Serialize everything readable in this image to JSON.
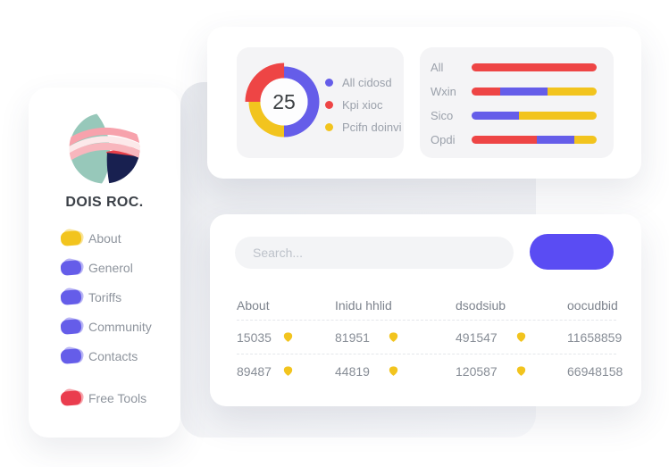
{
  "palette": {
    "red": "#ee4545",
    "blue": "#655de9",
    "yellow": "#f2c41e",
    "button": "#5a4cf3",
    "text_dark": "#3b4047",
    "text_gray": "#8e949d",
    "text_light": "#9ba1ab",
    "panel_gray": "#f4f4f6"
  },
  "sidebar": {
    "brand_name": "DOIS ROC.",
    "items": [
      {
        "label": "About",
        "color_hex": "#f2c41e"
      },
      {
        "label": "Generol",
        "color_hex": "#655de9"
      },
      {
        "label": "Toriffs",
        "color_hex": "#655de9"
      },
      {
        "label": "Community",
        "color_hex": "#655de9"
      },
      {
        "label": "Contacts",
        "color_hex": "#655de9"
      },
      {
        "label": "Free Tools",
        "color_hex": "#ea3d4e"
      }
    ]
  },
  "donut_card": {
    "center_value": "25",
    "legend": [
      {
        "label": "All cidosd",
        "color_hex": "#655de9"
      },
      {
        "label": "Kpi xioc",
        "color_hex": "#ee4545"
      },
      {
        "label": "Pcifn doinvi",
        "color_hex": "#f2c41e"
      }
    ]
  },
  "search": {
    "placeholder": "Search..."
  },
  "table": {
    "headers": [
      "About",
      "Inidu hhlid",
      "dsodsiub",
      "oocudbid"
    ],
    "rows": [
      [
        "15035",
        "81951",
        "491547",
        "11658859"
      ],
      [
        "89487",
        "44819",
        "120587",
        "66948158"
      ]
    ]
  },
  "chart_data": [
    {
      "type": "pie",
      "style": "donut",
      "center_label": "25",
      "start_angle_deg": -90,
      "direction": "clockwise",
      "segments": [
        {
          "label": "All cidosd",
          "color": "blue",
          "value": 50,
          "radius": 33,
          "stroke_width": 13
        },
        {
          "label": "Pcifn doinvi",
          "color": "yellow",
          "value": 25,
          "radius": 33,
          "stroke_width": 13
        },
        {
          "label": "Kpi xioc",
          "color": "red",
          "value": 25,
          "radius": 35,
          "stroke_width": 17
        }
      ]
    },
    {
      "type": "bar",
      "orientation": "horizontal",
      "stacked": true,
      "unit": "percent",
      "categories": [
        "All",
        "Wxin",
        "Sico",
        "Opdi"
      ],
      "rows": [
        [
          {
            "color": "red",
            "value": 100
          }
        ],
        [
          {
            "color": "red",
            "value": 23
          },
          {
            "color": "blue",
            "value": 38
          },
          {
            "color": "yellow",
            "value": 39
          }
        ],
        [
          {
            "color": "blue",
            "value": 38
          },
          {
            "color": "yellow",
            "value": 62
          }
        ],
        [
          {
            "color": "red",
            "value": 52
          },
          {
            "color": "blue",
            "value": 30
          },
          {
            "color": "yellow",
            "value": 18
          }
        ]
      ]
    }
  ]
}
